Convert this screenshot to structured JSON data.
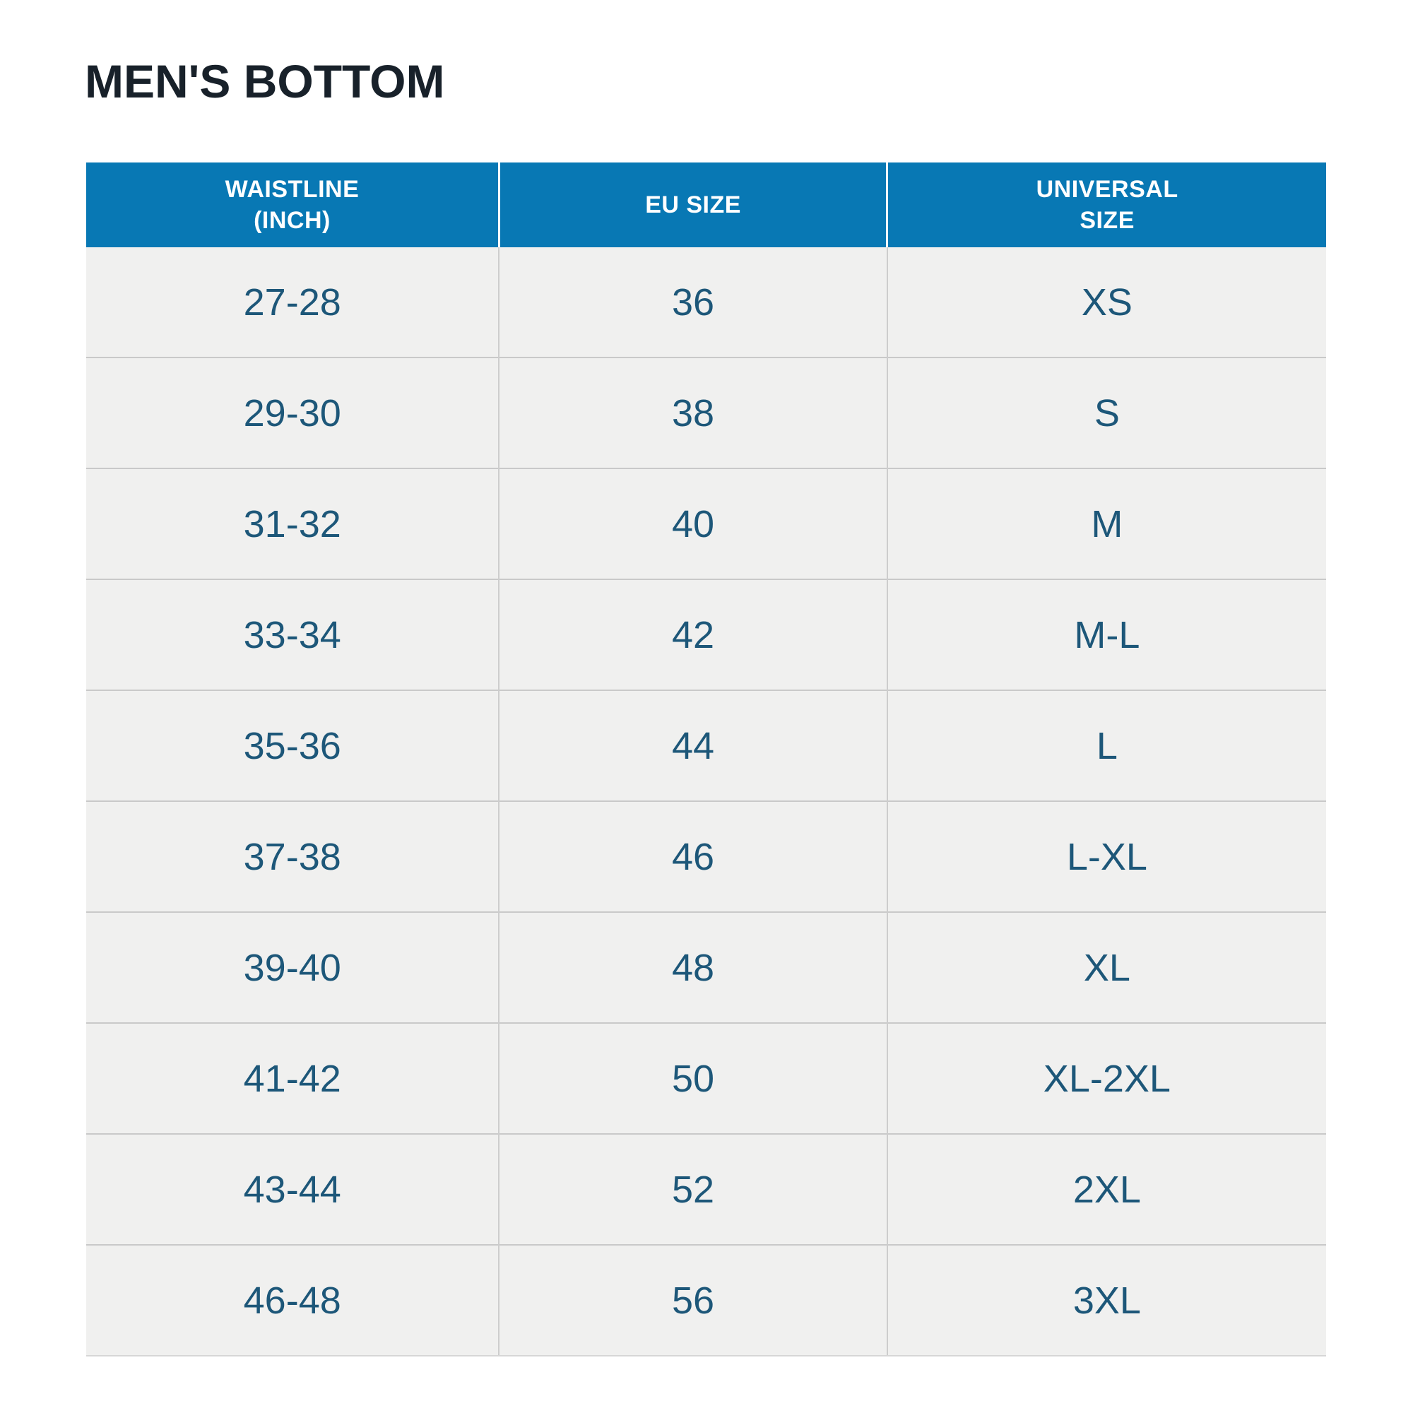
{
  "page": {
    "title": "MEN'S BOTTOM"
  },
  "table": {
    "columns": [
      {
        "label": "WAISTLINE\n(INCH)"
      },
      {
        "label": "EU SIZE"
      },
      {
        "label": "UNIVERSAL\nSIZE"
      }
    ],
    "rows": [
      [
        "27-28",
        "36",
        "XS"
      ],
      [
        "29-30",
        "38",
        "S"
      ],
      [
        "31-32",
        "40",
        "M"
      ],
      [
        "33-34",
        "42",
        "M-L"
      ],
      [
        "35-36",
        "44",
        "L"
      ],
      [
        "37-38",
        "46",
        "L-XL"
      ],
      [
        "39-40",
        "48",
        "XL"
      ],
      [
        "41-42",
        "50",
        "XL-2XL"
      ],
      [
        "43-44",
        "52",
        "2XL"
      ],
      [
        "46-48",
        "56",
        "3XL"
      ]
    ]
  },
  "colors": {
    "header_bg": "#0878b4",
    "header_text": "#ffffff",
    "cell_text": "#1d5779",
    "row_bg": "#f0f0ef",
    "row_divider": "#c9c9c9",
    "column_divider_data": "#cdcdcd",
    "column_divider_header": "#fbfdfe",
    "title_text": "#18212a",
    "page_bg": "#ffffff"
  },
  "chart_data": {
    "type": "table",
    "title": "MEN'S BOTTOM",
    "columns": [
      "WAISTLINE (INCH)",
      "EU SIZE",
      "UNIVERSAL SIZE"
    ],
    "rows": [
      [
        "27-28",
        "36",
        "XS"
      ],
      [
        "29-30",
        "38",
        "S"
      ],
      [
        "31-32",
        "40",
        "M"
      ],
      [
        "33-34",
        "42",
        "M-L"
      ],
      [
        "35-36",
        "44",
        "L"
      ],
      [
        "37-38",
        "46",
        "L-XL"
      ],
      [
        "39-40",
        "48",
        "XL"
      ],
      [
        "41-42",
        "50",
        "XL-2XL"
      ],
      [
        "43-44",
        "52",
        "2XL"
      ],
      [
        "46-48",
        "56",
        "3XL"
      ]
    ],
    "layout_hints": {
      "header_style": "solid blue band with white bold text",
      "row_style": "uniform light gray rows with gray separators",
      "text_alignment": "center"
    }
  }
}
